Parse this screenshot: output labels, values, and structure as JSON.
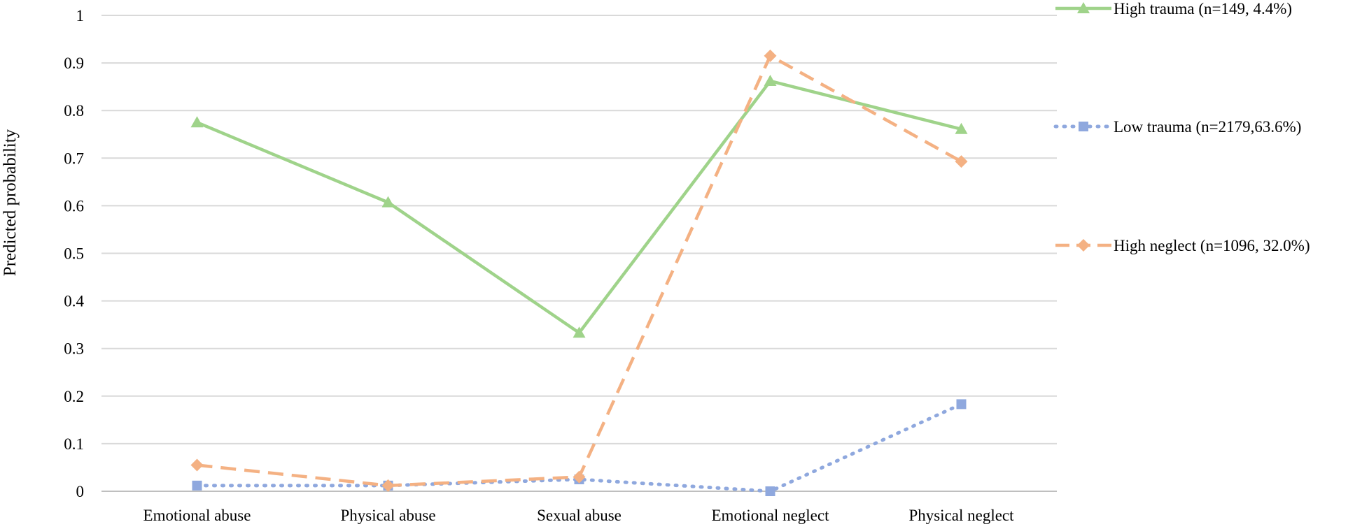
{
  "chart_data": {
    "type": "line",
    "title": "",
    "xlabel": "",
    "ylabel": "Predicted probability",
    "categories": [
      "Emotional abuse",
      "Physical abuse",
      "Sexual abuse",
      "Emotional neglect",
      "Physical neglect"
    ],
    "ylim": [
      0,
      1
    ],
    "yticks": [
      0,
      0.1,
      0.2,
      0.3,
      0.4,
      0.5,
      0.6,
      0.7,
      0.8,
      0.9,
      1
    ],
    "ytick_labels": [
      "0",
      "0.1",
      "0.2",
      "0.3",
      "0.4",
      "0.5",
      "0.6",
      "0.7",
      "0.8",
      "0.9",
      "1"
    ],
    "grid": true,
    "legend_position": "right",
    "series": [
      {
        "name": "High trauma (n=149, 4.4%)",
        "values": [
          0.775,
          0.607,
          0.333,
          0.862,
          0.761
        ],
        "color": "#9fd38a",
        "line_style": "solid",
        "marker": "triangle"
      },
      {
        "name": "Low trauma (n=2179,63.6%)",
        "values": [
          0.012,
          0.012,
          0.025,
          0.0,
          0.183
        ],
        "color": "#8fa8de",
        "line_style": "dotted",
        "marker": "square"
      },
      {
        "name": "High neglect (n=1096, 32.0%)",
        "values": [
          0.055,
          0.012,
          0.03,
          0.915,
          0.693
        ],
        "color": "#f4b183",
        "line_style": "dashed",
        "marker": "diamond"
      }
    ]
  }
}
